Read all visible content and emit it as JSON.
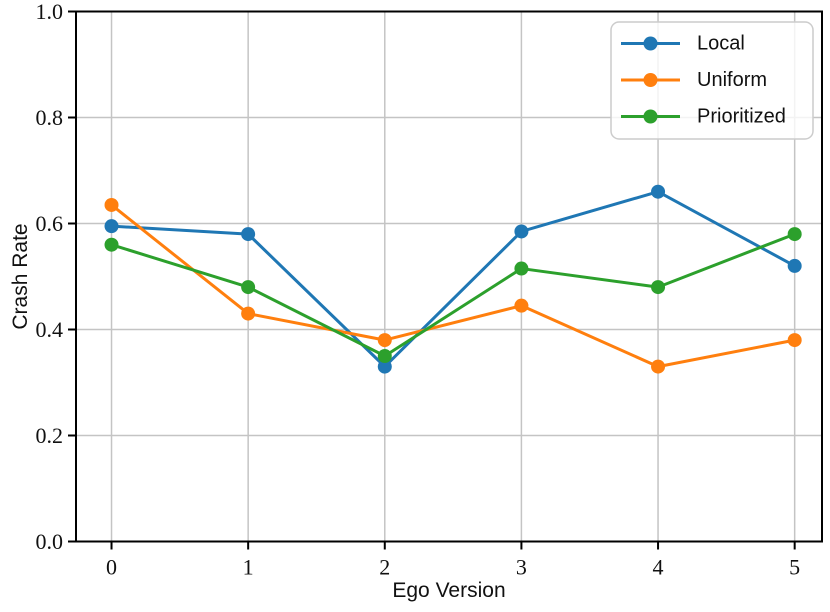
{
  "figure": {
    "background": "#ffffff",
    "grid_color": "#c4c4c4",
    "spine_color": "#000000",
    "text_color": "#111111",
    "legend_border_color": "#cccccc"
  },
  "chart_data": {
    "type": "line",
    "title": "",
    "xlabel": "Ego Version",
    "ylabel": "Crash Rate",
    "x": [
      0,
      1,
      2,
      3,
      4,
      5
    ],
    "xtick_labels": [
      "0",
      "1",
      "2",
      "3",
      "4",
      "5"
    ],
    "ytick_values": [
      0.0,
      0.2,
      0.4,
      0.6,
      0.8,
      1.0
    ],
    "ytick_labels": [
      "0.0",
      "0.2",
      "0.4",
      "0.6",
      "0.8",
      "1.0"
    ],
    "xlim": [
      -0.26,
      5.2
    ],
    "ylim": [
      0,
      1
    ],
    "grid": true,
    "legend_position": "upper right",
    "series": [
      {
        "name": "Local",
        "color": "#1f77b4",
        "values": [
          0.595,
          0.58,
          0.33,
          0.585,
          0.66,
          0.52
        ]
      },
      {
        "name": "Uniform",
        "color": "#ff7f0e",
        "values": [
          0.635,
          0.43,
          0.38,
          0.445,
          0.33,
          0.38
        ]
      },
      {
        "name": "Prioritized",
        "color": "#2ca02c",
        "values": [
          0.56,
          0.48,
          0.35,
          0.515,
          0.48,
          0.58
        ]
      }
    ]
  }
}
